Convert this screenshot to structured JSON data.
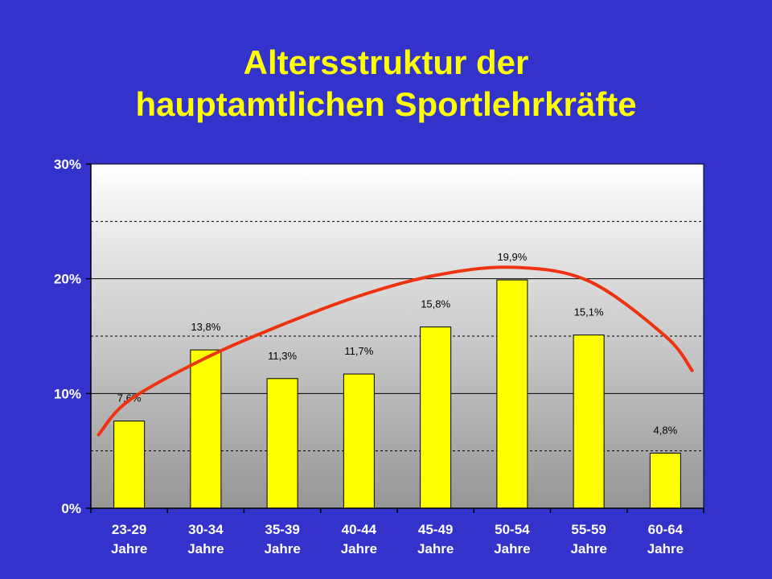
{
  "slide": {
    "title_line1": "Altersstruktur der",
    "title_line2": "hauptamtlichen Sportlehrkräfte",
    "background_color": "#3333cc",
    "title_color": "#ffff00"
  },
  "chart_data": {
    "type": "bar",
    "title": "",
    "categories": [
      [
        "23-29",
        "Jahre"
      ],
      [
        "30-34",
        "Jahre"
      ],
      [
        "35-39",
        "Jahre"
      ],
      [
        "40-44",
        "Jahre"
      ],
      [
        "45-49",
        "Jahre"
      ],
      [
        "50-54",
        "Jahre"
      ],
      [
        "55-59",
        "Jahre"
      ],
      [
        "60-64",
        "Jahre"
      ]
    ],
    "values": [
      7.6,
      13.8,
      11.3,
      11.7,
      15.8,
      19.9,
      15.1,
      4.8
    ],
    "data_labels": [
      "7,6%",
      "13,8%",
      "11,3%",
      "11,7%",
      "15,8%",
      "19,9%",
      "15,1%",
      "4,8%"
    ],
    "ylim": [
      0,
      30
    ],
    "yticks": [
      0,
      10,
      20,
      30
    ],
    "ytick_labels": [
      "0%",
      "10%",
      "20%",
      "30%"
    ],
    "minor_gridlines": [
      5,
      15,
      25
    ],
    "grid": true,
    "bar_color": "#ffff00",
    "trend_color": "#ee3311",
    "trendline": {
      "type": "polynomial",
      "x": [
        0.6,
        1,
        2,
        3,
        4,
        5,
        6,
        7,
        8,
        8.35
      ],
      "y": [
        6.4,
        9.4,
        13.1,
        16.0,
        18.5,
        20.3,
        21.0,
        19.8,
        15.0,
        12.0
      ]
    }
  }
}
